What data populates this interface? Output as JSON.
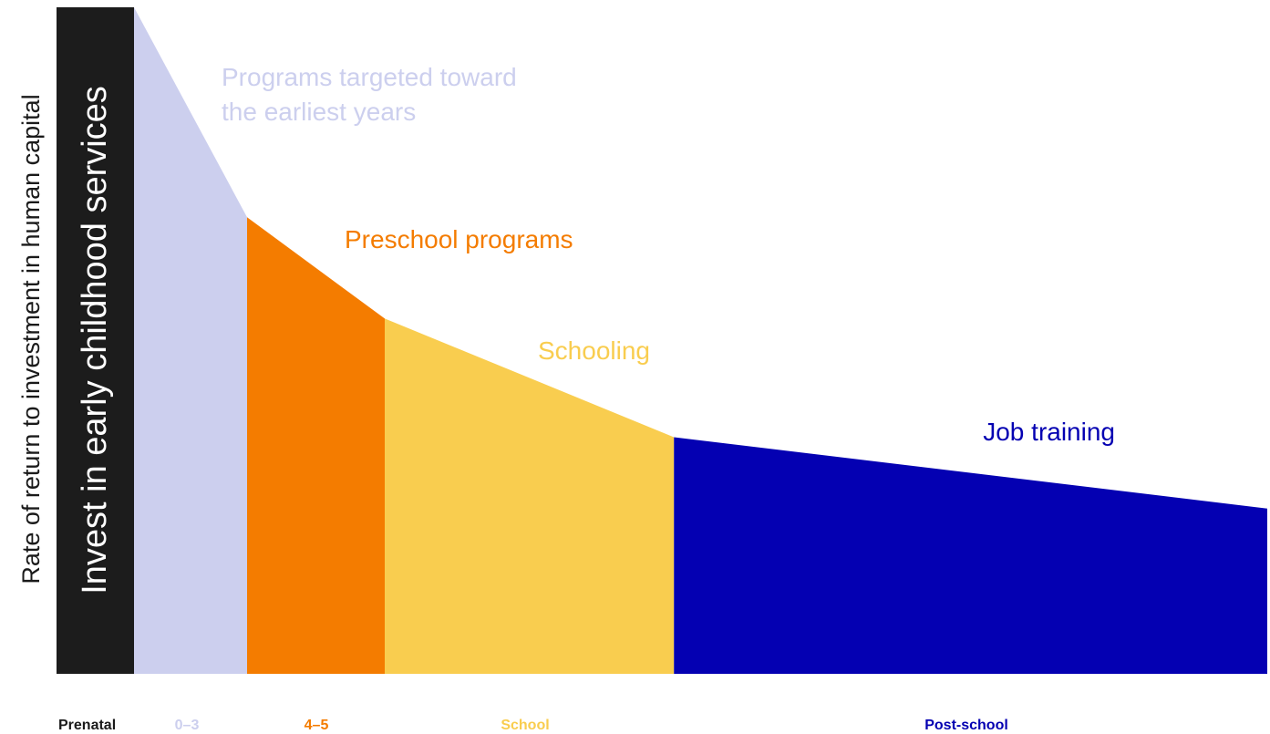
{
  "chart_data": {
    "type": "area",
    "title": "",
    "ylabel": "Rate of return to investment in human capital",
    "banner": "Invest in early childhood services",
    "categories": [
      "Prenatal",
      "0–3",
      "4–5",
      "School",
      "Post-school"
    ],
    "x_breakpoints": [
      0,
      1,
      2,
      4,
      8
    ],
    "curve": [
      {
        "x": 0,
        "y": 100
      },
      {
        "x": 1,
        "y": 68.5
      },
      {
        "x": 2,
        "y": 53.3
      },
      {
        "x": 4.05,
        "y": 35.5
      },
      {
        "x": 8,
        "y": 24.8
      }
    ],
    "segments": [
      {
        "category": "0–3",
        "label": "Programs targeted toward the earliest years",
        "label_lines": [
          "Programs targeted toward",
          "the earliest years"
        ],
        "color": "#cccfee"
      },
      {
        "category": "4–5",
        "label": "Preschool programs",
        "label_lines": [
          "Preschool programs"
        ],
        "color": "#f47c00"
      },
      {
        "category": "School",
        "label": "Schooling",
        "label_lines": [
          "Schooling"
        ],
        "color": "#f9cd4f"
      },
      {
        "category": "Post-school",
        "label": "Job training",
        "label_lines": [
          "Job training"
        ],
        "color": "#0400b2"
      }
    ],
    "colors": {
      "prenatal": "#1a1a1a",
      "banner_bg": "#1c1c1c",
      "banner_text": "#ffffff",
      "ylabel_text": "#1a1a1a"
    }
  }
}
